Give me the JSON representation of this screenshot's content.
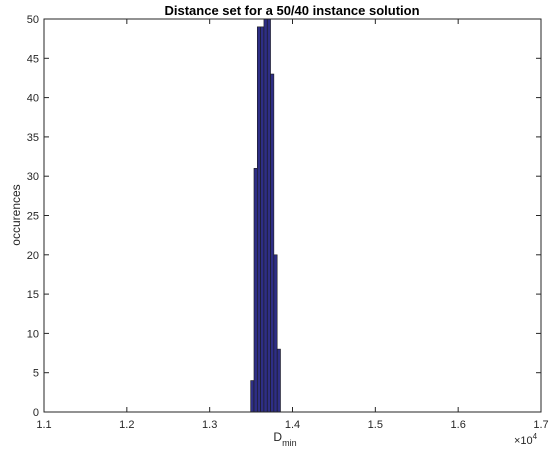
{
  "chart_data": {
    "type": "bar",
    "title": "Distance set for a 50/40 instance solution",
    "xlabel": "D",
    "xlabel_subscript": "min",
    "ylabel": "occurences",
    "x_exponent_label": "×10",
    "x_exponent_power": "4",
    "xlim": [
      1.1,
      1.7
    ],
    "ylim": [
      0,
      50
    ],
    "x_ticks": [
      "1.1",
      "1.2",
      "1.3",
      "1.4",
      "1.5",
      "1.6",
      "1.7"
    ],
    "y_ticks": [
      "0",
      "5",
      "10",
      "15",
      "20",
      "25",
      "30",
      "35",
      "40",
      "45",
      "50"
    ],
    "grid": false,
    "bar_color": "#2e2e85",
    "bar_edge_color": "#1a1a1a",
    "bins": [
      {
        "x0": 1.3495,
        "x1": 1.3535,
        "count": 4
      },
      {
        "x0": 1.3535,
        "x1": 1.3575,
        "count": 31
      },
      {
        "x0": 1.3575,
        "x1": 1.3615,
        "count": 49
      },
      {
        "x0": 1.3615,
        "x1": 1.3655,
        "count": 49
      },
      {
        "x0": 1.3655,
        "x1": 1.3695,
        "count": 50
      },
      {
        "x0": 1.3695,
        "x1": 1.3735,
        "count": 50
      },
      {
        "x0": 1.3735,
        "x1": 1.3775,
        "count": 43
      },
      {
        "x0": 1.3775,
        "x1": 1.3815,
        "count": 20
      },
      {
        "x0": 1.3815,
        "x1": 1.3855,
        "count": 8
      }
    ]
  }
}
